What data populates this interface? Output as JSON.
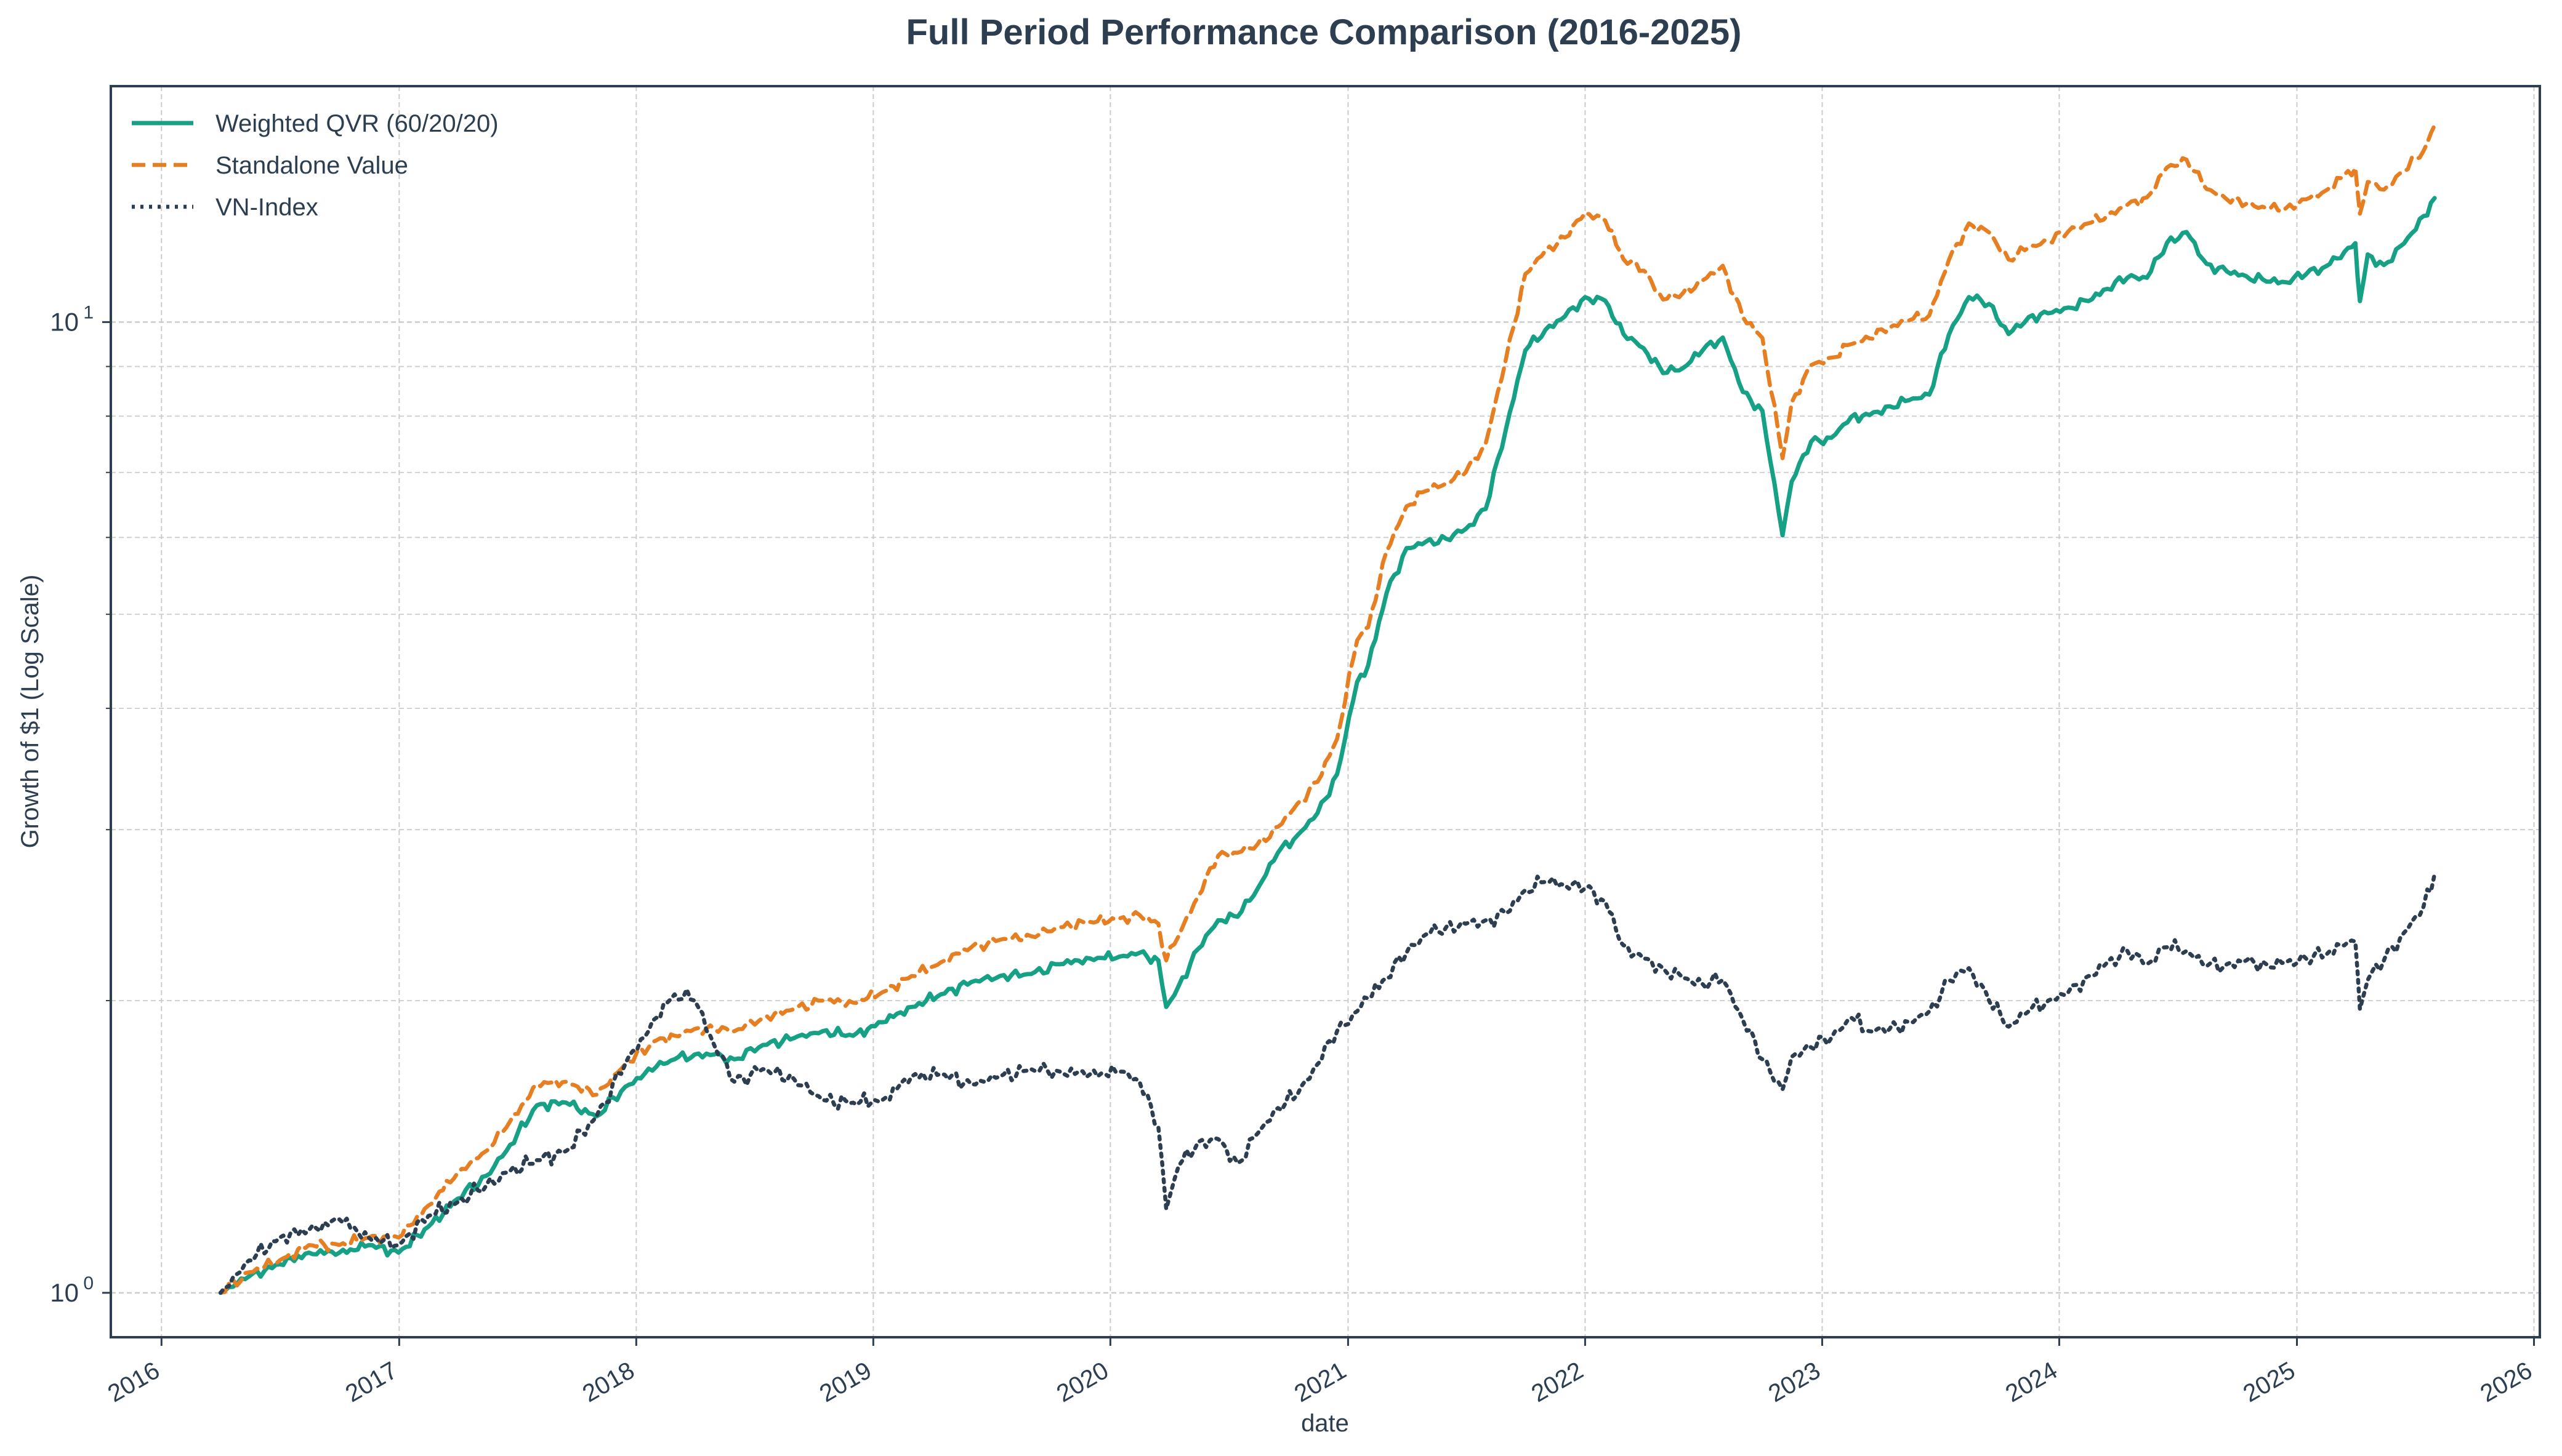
{
  "chart_data": {
    "type": "line",
    "title": "Full Period Performance Comparison (2016-2025)",
    "xlabel": "date",
    "ylabel": "Growth of $1 (Log Scale)",
    "y_scale": "log",
    "ylim": [
      0.9,
      17.5
    ],
    "xlim": [
      "2015-10-15",
      "2026-01-10"
    ],
    "x_ticks": [
      "2016",
      "2017",
      "2018",
      "2019",
      "2020",
      "2021",
      "2022",
      "2023",
      "2024",
      "2025",
      "2026"
    ],
    "y_ticks": [
      {
        "base": "10",
        "exp": "0",
        "value": 1
      },
      {
        "base": "10",
        "exp": "1",
        "value": 10
      }
    ],
    "grid": true,
    "legend_position": "top-left",
    "colors": {
      "axes": "#2c3e50",
      "grid": "#cccccc",
      "text": "#2c3e50"
    },
    "series": [
      {
        "name": "Weighted QVR (60/20/20)",
        "color": "#16a085",
        "style": "solid",
        "x": [
          "2016-04-01",
          "2016-05-15",
          "2016-07-01",
          "2016-08-15",
          "2016-10-01",
          "2016-11-15",
          "2016-12-31",
          "2017-02-15",
          "2017-04-01",
          "2017-05-15",
          "2017-06-15",
          "2017-08-01",
          "2017-09-15",
          "2017-11-01",
          "2017-12-15",
          "2018-02-01",
          "2018-03-01",
          "2018-04-01",
          "2018-05-01",
          "2018-06-01",
          "2018-07-15",
          "2018-09-01",
          "2018-10-15",
          "2018-12-01",
          "2019-01-15",
          "2019-03-01",
          "2019-04-15",
          "2019-06-01",
          "2019-07-15",
          "2019-09-01",
          "2019-10-15",
          "2019-12-01",
          "2020-01-15",
          "2020-02-15",
          "2020-03-15",
          "2020-03-27",
          "2020-04-15",
          "2020-05-15",
          "2020-06-15",
          "2020-07-15",
          "2020-08-15",
          "2020-09-15",
          "2020-10-15",
          "2020-11-15",
          "2020-12-15",
          "2021-01-15",
          "2021-02-01",
          "2021-03-01",
          "2021-04-01",
          "2021-05-01",
          "2021-06-01",
          "2021-07-01",
          "2021-08-01",
          "2021-09-01",
          "2021-10-01",
          "2021-11-01",
          "2021-12-01",
          "2022-01-01",
          "2022-02-01",
          "2022-03-01",
          "2022-04-01",
          "2022-05-01",
          "2022-06-01",
          "2022-07-01",
          "2022-08-01",
          "2022-09-01",
          "2022-10-01",
          "2022-11-01",
          "2022-11-15",
          "2022-12-15",
          "2023-01-15",
          "2023-02-15",
          "2023-03-15",
          "2023-04-15",
          "2023-05-15",
          "2023-06-15",
          "2023-07-15",
          "2023-08-15",
          "2023-09-15",
          "2023-10-15",
          "2023-11-15",
          "2023-12-15",
          "2024-01-15",
          "2024-02-15",
          "2024-03-15",
          "2024-04-15",
          "2024-05-15",
          "2024-06-15",
          "2024-07-15",
          "2024-08-15",
          "2024-09-15",
          "2024-10-15",
          "2024-11-15",
          "2024-12-15",
          "2025-01-15",
          "2025-02-15",
          "2025-03-15",
          "2025-04-01",
          "2025-04-08",
          "2025-04-20",
          "2025-05-15",
          "2025-06-15",
          "2025-07-15",
          "2025-08-01"
        ],
        "values": [
          1.0,
          1.04,
          1.07,
          1.1,
          1.1,
          1.12,
          1.1,
          1.17,
          1.25,
          1.32,
          1.4,
          1.56,
          1.57,
          1.52,
          1.63,
          1.71,
          1.74,
          1.76,
          1.76,
          1.74,
          1.8,
          1.83,
          1.86,
          1.84,
          1.9,
          1.97,
          2.03,
          2.09,
          2.12,
          2.13,
          2.18,
          2.21,
          2.22,
          2.24,
          2.2,
          1.97,
          2.07,
          2.26,
          2.42,
          2.44,
          2.61,
          2.84,
          2.96,
          3.12,
          3.42,
          4.26,
          4.43,
          5.25,
          5.85,
          5.94,
          5.98,
          6.12,
          6.42,
          7.75,
          9.35,
          9.82,
          10.14,
          10.61,
          10.52,
          9.72,
          9.4,
          8.86,
          8.97,
          9.35,
          9.64,
          8.47,
          8.1,
          6.03,
          6.85,
          7.53,
          7.6,
          7.99,
          8.02,
          8.19,
          8.31,
          8.42,
          9.7,
          10.61,
          10.44,
          9.72,
          10.12,
          10.21,
          10.35,
          10.51,
          10.82,
          11.11,
          11.11,
          12.07,
          12.38,
          11.48,
          11.28,
          11.15,
          11.01,
          10.99,
          11.2,
          11.42,
          11.81,
          12.06,
          10.51,
          11.74,
          11.45,
          12.05,
          12.86,
          13.42
        ]
      },
      {
        "name": "Standalone Value",
        "color": "#e67e22",
        "style": "dashed",
        "x": [
          "2016-04-01",
          "2016-05-15",
          "2016-07-01",
          "2016-08-15",
          "2016-10-01",
          "2016-11-15",
          "2016-12-31",
          "2017-02-15",
          "2017-04-01",
          "2017-05-15",
          "2017-06-15",
          "2017-08-01",
          "2017-09-15",
          "2017-11-01",
          "2017-12-15",
          "2018-02-01",
          "2018-03-01",
          "2018-04-01",
          "2018-05-01",
          "2018-06-01",
          "2018-07-15",
          "2018-09-01",
          "2018-10-15",
          "2018-12-01",
          "2019-01-15",
          "2019-03-01",
          "2019-04-15",
          "2019-06-01",
          "2019-07-15",
          "2019-09-01",
          "2019-10-15",
          "2019-12-01",
          "2020-01-15",
          "2020-02-15",
          "2020-03-15",
          "2020-03-27",
          "2020-04-15",
          "2020-05-15",
          "2020-06-15",
          "2020-07-15",
          "2020-08-15",
          "2020-09-15",
          "2020-10-15",
          "2020-11-15",
          "2020-12-15",
          "2021-01-15",
          "2021-02-01",
          "2021-03-01",
          "2021-04-01",
          "2021-05-01",
          "2021-06-01",
          "2021-07-01",
          "2021-08-01",
          "2021-09-01",
          "2021-10-01",
          "2021-11-01",
          "2021-12-01",
          "2022-01-01",
          "2022-02-01",
          "2022-03-01",
          "2022-04-01",
          "2022-05-01",
          "2022-06-01",
          "2022-07-01",
          "2022-08-01",
          "2022-09-01",
          "2022-10-01",
          "2022-11-01",
          "2022-11-15",
          "2022-12-15",
          "2023-01-15",
          "2023-02-15",
          "2023-03-15",
          "2023-04-15",
          "2023-05-15",
          "2023-06-15",
          "2023-07-15",
          "2023-08-15",
          "2023-09-15",
          "2023-10-15",
          "2023-11-15",
          "2023-12-15",
          "2024-01-15",
          "2024-02-15",
          "2024-03-15",
          "2024-04-15",
          "2024-05-15",
          "2024-06-15",
          "2024-07-15",
          "2024-08-15",
          "2024-09-15",
          "2024-10-15",
          "2024-11-15",
          "2024-12-15",
          "2025-01-15",
          "2025-02-15",
          "2025-03-15",
          "2025-04-01",
          "2025-04-08",
          "2025-04-20",
          "2025-05-15",
          "2025-06-15",
          "2025-07-15",
          "2025-08-01"
        ],
        "values": [
          1.0,
          1.05,
          1.08,
          1.12,
          1.12,
          1.14,
          1.14,
          1.23,
          1.33,
          1.4,
          1.48,
          1.64,
          1.65,
          1.6,
          1.72,
          1.82,
          1.84,
          1.87,
          1.87,
          1.86,
          1.92,
          1.96,
          2.0,
          1.99,
          2.04,
          2.12,
          2.19,
          2.27,
          2.31,
          2.33,
          2.38,
          2.41,
          2.43,
          2.45,
          2.4,
          2.2,
          2.33,
          2.56,
          2.82,
          2.84,
          2.9,
          3.02,
          3.19,
          3.36,
          3.72,
          4.7,
          4.85,
          5.8,
          6.46,
          6.7,
          6.82,
          7.0,
          7.5,
          9.15,
          11.21,
          11.85,
          12.22,
          12.96,
          12.72,
          11.61,
          11.3,
          10.55,
          10.72,
          11.04,
          11.43,
          10.12,
          9.63,
          7.24,
          8.26,
          9.03,
          9.19,
          9.49,
          9.62,
          9.87,
          10.04,
          10.16,
          11.58,
          12.64,
          12.37,
          11.6,
          11.93,
          12.1,
          12.4,
          12.64,
          12.88,
          13.21,
          13.44,
          14.43,
          14.7,
          13.71,
          13.38,
          13.24,
          13.1,
          13.1,
          13.38,
          13.67,
          14.18,
          14.42,
          12.93,
          13.94,
          13.69,
          14.29,
          15.01,
          15.95
        ]
      },
      {
        "name": "VN-Index",
        "color": "#2c3e50",
        "style": "dotted",
        "x": [
          "2016-04-01",
          "2016-05-15",
          "2016-07-01",
          "2016-08-15",
          "2016-10-01",
          "2016-11-15",
          "2016-12-31",
          "2017-02-15",
          "2017-04-01",
          "2017-05-15",
          "2017-06-15",
          "2017-08-01",
          "2017-09-15",
          "2017-11-01",
          "2017-12-15",
          "2018-02-01",
          "2018-03-01",
          "2018-04-01",
          "2018-05-01",
          "2018-06-01",
          "2018-07-15",
          "2018-09-01",
          "2018-10-15",
          "2018-12-01",
          "2019-01-15",
          "2019-03-01",
          "2019-04-15",
          "2019-06-01",
          "2019-07-15",
          "2019-09-01",
          "2019-10-15",
          "2019-12-01",
          "2020-01-15",
          "2020-02-15",
          "2020-03-15",
          "2020-03-27",
          "2020-04-15",
          "2020-05-15",
          "2020-06-15",
          "2020-07-15",
          "2020-08-15",
          "2020-09-15",
          "2020-10-15",
          "2020-11-15",
          "2020-12-15",
          "2021-01-15",
          "2021-02-01",
          "2021-03-01",
          "2021-04-01",
          "2021-05-01",
          "2021-06-01",
          "2021-07-01",
          "2021-08-01",
          "2021-09-01",
          "2021-10-01",
          "2021-11-01",
          "2021-12-01",
          "2022-01-01",
          "2022-02-01",
          "2022-03-01",
          "2022-04-01",
          "2022-05-01",
          "2022-06-01",
          "2022-07-01",
          "2022-08-01",
          "2022-09-01",
          "2022-10-01",
          "2022-11-01",
          "2022-11-15",
          "2022-12-15",
          "2023-01-15",
          "2023-02-15",
          "2023-03-15",
          "2023-04-15",
          "2023-05-15",
          "2023-06-15",
          "2023-07-15",
          "2023-08-15",
          "2023-09-15",
          "2023-10-15",
          "2023-11-15",
          "2023-12-15",
          "2024-01-15",
          "2024-02-15",
          "2024-03-15",
          "2024-04-15",
          "2024-05-15",
          "2024-06-15",
          "2024-07-15",
          "2024-08-15",
          "2024-09-15",
          "2024-10-15",
          "2024-11-15",
          "2024-12-15",
          "2025-01-15",
          "2025-02-15",
          "2025-03-15",
          "2025-04-01",
          "2025-04-08",
          "2025-04-20",
          "2025-05-15",
          "2025-06-15",
          "2025-07-15",
          "2025-08-01"
        ],
        "values": [
          1.0,
          1.08,
          1.14,
          1.16,
          1.19,
          1.14,
          1.12,
          1.2,
          1.24,
          1.29,
          1.33,
          1.37,
          1.4,
          1.52,
          1.72,
          1.92,
          2.03,
          2.0,
          1.8,
          1.65,
          1.7,
          1.66,
          1.58,
          1.57,
          1.58,
          1.67,
          1.68,
          1.64,
          1.67,
          1.7,
          1.69,
          1.68,
          1.69,
          1.65,
          1.48,
          1.22,
          1.35,
          1.43,
          1.44,
          1.36,
          1.46,
          1.55,
          1.6,
          1.72,
          1.86,
          1.95,
          2.01,
          2.11,
          2.24,
          2.34,
          2.38,
          2.4,
          2.42,
          2.46,
          2.6,
          2.65,
          2.63,
          2.61,
          2.53,
          2.28,
          2.21,
          2.16,
          2.11,
          2.08,
          2.1,
          1.91,
          1.74,
          1.62,
          1.75,
          1.79,
          1.83,
          1.92,
          1.86,
          1.87,
          1.9,
          1.95,
          2.1,
          2.16,
          2.0,
          1.88,
          1.95,
          2.0,
          2.04,
          2.12,
          2.19,
          2.25,
          2.18,
          2.27,
          2.25,
          2.17,
          2.18,
          2.2,
          2.18,
          2.19,
          2.21,
          2.23,
          2.28,
          2.3,
          1.96,
          2.1,
          2.2,
          2.35,
          2.5,
          2.7
        ]
      }
    ]
  }
}
